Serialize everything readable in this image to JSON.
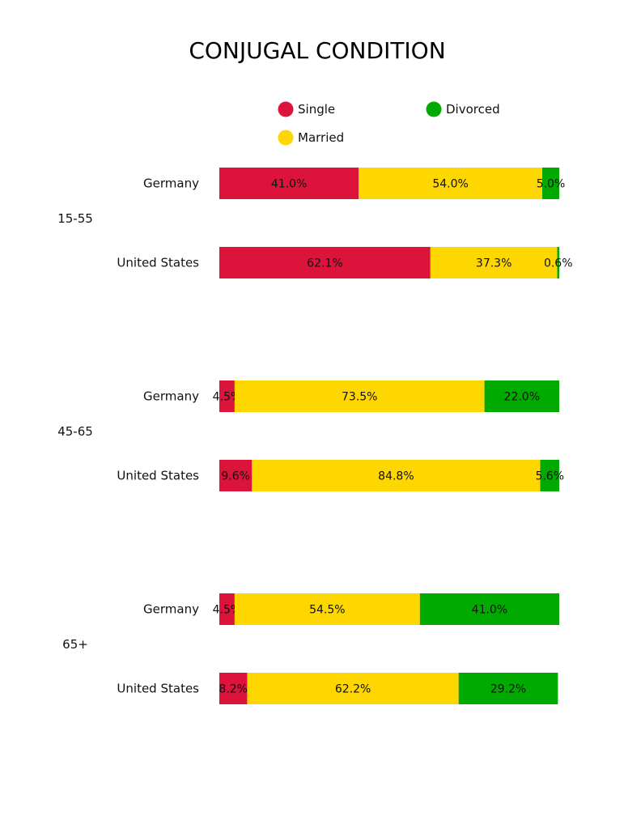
{
  "chart_data": {
    "type": "bar",
    "orientation": "horizontal",
    "stacked": true,
    "title": "CONJUGAL CONDITION",
    "value_suffix": "%",
    "xlim": [
      0,
      100
    ],
    "series": [
      {
        "name": "Single",
        "color": "#DC143C"
      },
      {
        "name": "Married",
        "color": "#FFD700"
      },
      {
        "name": "Divorced",
        "color": "#00AA00"
      }
    ],
    "groups": [
      {
        "label": "15-55",
        "rows": [
          {
            "label": "Germany",
            "values": [
              41.0,
              54.0,
              5.0
            ],
            "labels": [
              "41.0%",
              "54.0%",
              "5.0%"
            ]
          },
          {
            "label": "United States",
            "values": [
              62.1,
              37.3,
              0.6
            ],
            "labels": [
              "62.1%",
              "37.3%",
              "0.6%"
            ]
          }
        ]
      },
      {
        "label": "45-65",
        "rows": [
          {
            "label": "Germany",
            "values": [
              4.5,
              73.5,
              22.0
            ],
            "labels": [
              "4.5%",
              "73.5%",
              "22.0%"
            ]
          },
          {
            "label": "United States",
            "values": [
              9.6,
              84.8,
              5.6
            ],
            "labels": [
              "9.6%",
              "84.8%",
              "5.6%"
            ]
          }
        ]
      },
      {
        "label": "65+",
        "rows": [
          {
            "label": "Germany",
            "values": [
              4.5,
              54.5,
              41.0
            ],
            "labels": [
              "4.5%",
              "54.5%",
              "41.0%"
            ]
          },
          {
            "label": "United States",
            "values": [
              8.2,
              62.2,
              29.2
            ],
            "labels": [
              "8.2%",
              "62.2%",
              "29.2%"
            ]
          }
        ]
      }
    ]
  }
}
